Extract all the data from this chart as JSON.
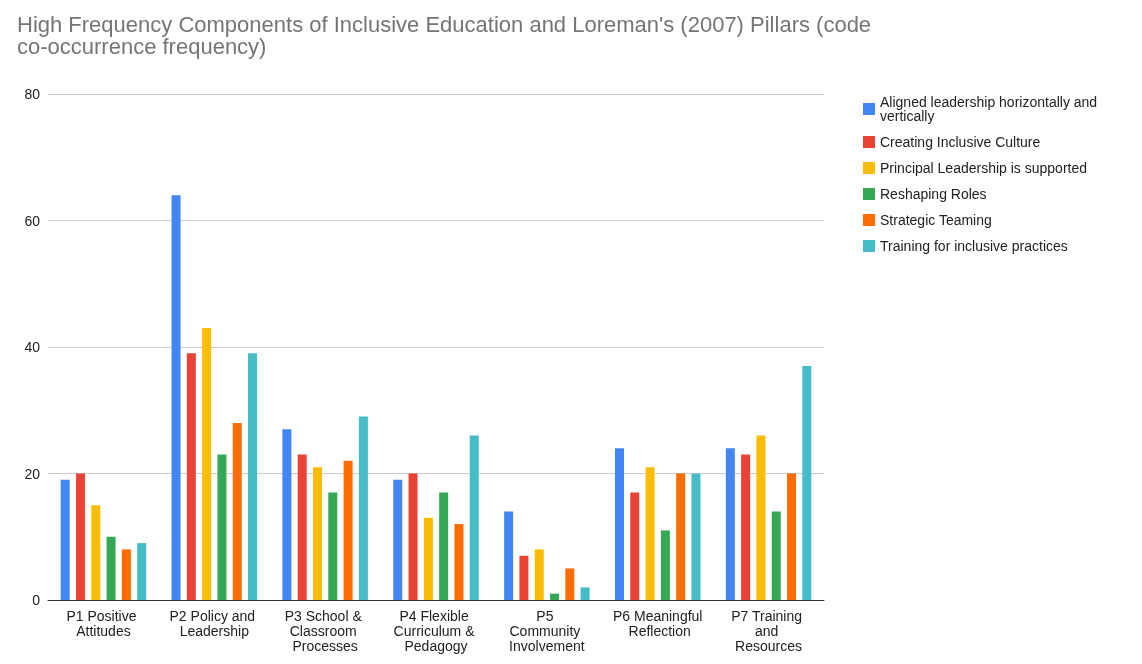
{
  "chart_data": {
    "type": "bar",
    "title": "High Frequency Components of Inclusive Education and Loreman's (2007) Pillars (code co-occurrence frequency)",
    "categories": [
      "P1 Positive Attitudes",
      "P2 Policy and Leadership",
      "P3 School & Classroom Processes",
      "P4 Flexible Curriculum & Pedagogy",
      "P5 Community Involvement",
      "P6 Meaningful Reflection",
      "P7 Training and Resources"
    ],
    "series": [
      {
        "name": "Aligned leadership horizontally and vertically",
        "color": "#4285f4",
        "values": [
          19,
          64,
          27,
          19,
          14,
          24,
          24
        ]
      },
      {
        "name": "Creating Inclusive Culture",
        "color": "#ea4335",
        "values": [
          20,
          39,
          23,
          20,
          7,
          17,
          23
        ]
      },
      {
        "name": "Principal Leadership is supported",
        "color": "#fbbc04",
        "values": [
          15,
          43,
          21,
          13,
          8,
          21,
          26
        ]
      },
      {
        "name": "Reshaping Roles",
        "color": "#34a853",
        "values": [
          10,
          23,
          17,
          17,
          1,
          11,
          14
        ]
      },
      {
        "name": "Strategic Teaming",
        "color": "#ff6d01",
        "values": [
          8,
          28,
          22,
          12,
          5,
          20,
          20
        ]
      },
      {
        "name": "Training for inclusive practices",
        "color": "#46bdc6",
        "values": [
          9,
          39,
          29,
          26,
          2,
          20,
          37
        ]
      }
    ],
    "ylim": [
      0,
      80
    ],
    "yticks": [
      0,
      20,
      40,
      60,
      80
    ],
    "grid": "y",
    "legend": "right"
  }
}
